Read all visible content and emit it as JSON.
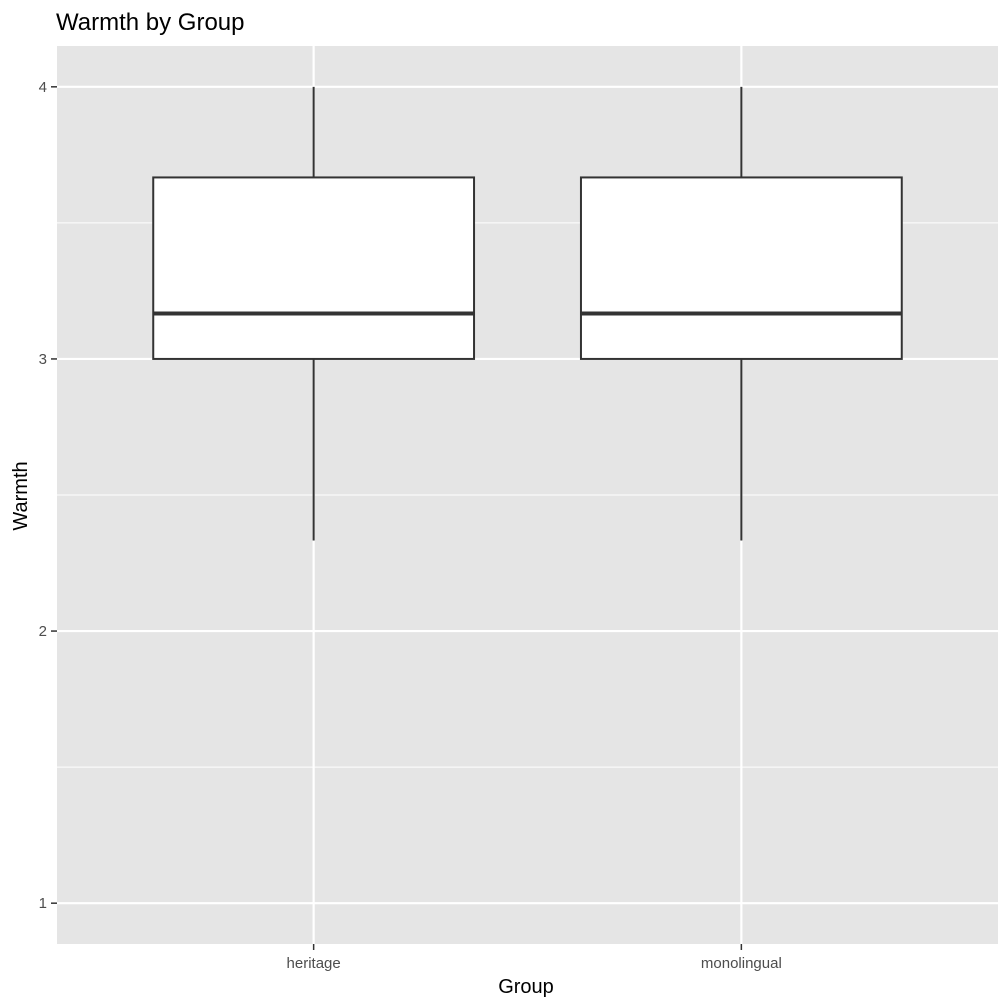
{
  "chart_data": {
    "type": "boxplot",
    "title": "Warmth by Group",
    "xlabel": "Group",
    "ylabel": "Warmth",
    "categories": [
      "heritage",
      "monolingual"
    ],
    "boxes": [
      {
        "category": "heritage",
        "min": 2.333,
        "q1": 3.0,
        "median": 3.167,
        "q3": 3.667,
        "max": 4.0
      },
      {
        "category": "monolingual",
        "min": 2.333,
        "q1": 3.0,
        "median": 3.167,
        "q3": 3.667,
        "max": 4.0
      }
    ],
    "y_ticks": [
      "1",
      "2",
      "3",
      "4"
    ],
    "ylim": [
      0.85,
      4.15
    ],
    "grid": true,
    "legend": "none",
    "colors": {
      "panel_background": "#e5e5e5",
      "grid": "#ffffff",
      "box_fill": "#ffffff",
      "box_stroke": "#333333",
      "tick": "#333333"
    }
  }
}
